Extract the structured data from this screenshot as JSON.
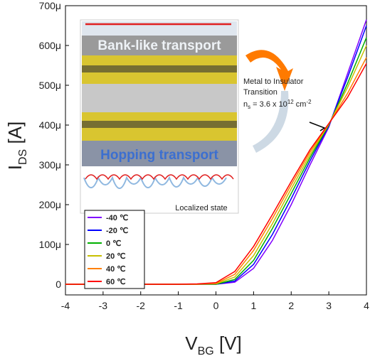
{
  "chart_data": {
    "type": "line",
    "x_label": {
      "main": "V",
      "sub": "BG",
      "unit": " [V]"
    },
    "y_label": {
      "main": "I",
      "sub": "DS",
      "unit": " [A]"
    },
    "x": [
      -4,
      -3,
      -2,
      -1,
      -0.5,
      0,
      0.5,
      1,
      1.5,
      2,
      2.5,
      3,
      3.5,
      4
    ],
    "series": [
      {
        "name": "-40 ℃",
        "color": "#8000ff",
        "values": [
          0,
          0,
          0,
          0,
          0,
          0,
          5e-06,
          4e-05,
          0.00011,
          0.0002,
          0.0003,
          0.000395,
          0.00053,
          0.000665
        ]
      },
      {
        "name": "-20 ℃",
        "color": "#0000ff",
        "values": [
          0,
          0,
          0,
          0,
          0,
          0,
          8e-06,
          5e-05,
          0.000125,
          0.000215,
          0.00031,
          0.000398,
          0.00052,
          0.00065
        ]
      },
      {
        "name": "0 ℃",
        "color": "#00b000",
        "values": [
          0,
          0,
          0,
          0,
          0,
          0,
          1.2e-05,
          6e-05,
          0.00014,
          0.000228,
          0.000318,
          0.0004,
          0.000505,
          0.00062
        ]
      },
      {
        "name": "20 ℃",
        "color": "#c8c000",
        "values": [
          0,
          0,
          0,
          0,
          0,
          1e-06,
          1.8e-05,
          7.2e-05,
          0.000152,
          0.00024,
          0.000325,
          0.000402,
          0.000495,
          0.0006
        ]
      },
      {
        "name": "40 ℃",
        "color": "#ff8000",
        "values": [
          0,
          0,
          0,
          0,
          0,
          2e-06,
          2.5e-05,
          8.5e-05,
          0.000165,
          0.00025,
          0.000332,
          0.000403,
          0.00048,
          0.00057
        ]
      },
      {
        "name": "60 ℃",
        "color": "#ff0000",
        "values": [
          0,
          0,
          0,
          0,
          1e-06,
          4e-06,
          3.2e-05,
          9.5e-05,
          0.000175,
          0.000258,
          0.000338,
          0.000404,
          0.00047,
          0.000555
        ]
      }
    ],
    "xlim": [
      -4,
      4
    ],
    "xticks": [
      -4,
      -3,
      -2,
      -1,
      0,
      1,
      2,
      3,
      4
    ],
    "ylim": [
      0,
      0.0007
    ],
    "yticks": [
      0,
      {
        "value": 0.0001,
        "label": "100μ"
      },
      {
        "value": 0.0002,
        "label": "200μ"
      },
      {
        "value": 0.0003,
        "label": "300μ"
      },
      {
        "value": 0.0004,
        "label": "400μ"
      },
      {
        "value": 0.0005,
        "label": "500μ"
      },
      {
        "value": 0.0006,
        "label": "600μ"
      },
      {
        "value": 0.0007,
        "label": "700μ"
      }
    ],
    "legend": "lower left",
    "annotation": {
      "line1": "Metal to Insulator",
      "line2": "Transition",
      "n": "n",
      "n_sub": "s",
      "eq": " = 3.6 x 10",
      "exp": "12",
      "unit": " cm",
      "unit_exp": "-2"
    },
    "inset": {
      "top": "Bank-like transport",
      "bottom": "Hopping transport",
      "caption": "Localized state"
    }
  }
}
